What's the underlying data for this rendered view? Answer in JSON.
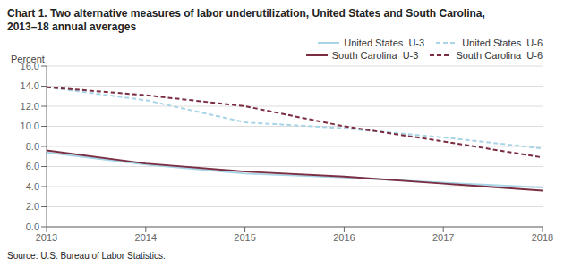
{
  "chart_data": {
    "type": "line",
    "title": "Chart 1. Two alternative measures of labor underutilization, United States and South Carolina,",
    "subtitle": "2013–18 annual averages",
    "y_label": "Percent",
    "annotations": [
      "Source: U.S. Bureau of Labor Statistics."
    ],
    "x": [
      2013,
      2014,
      2015,
      2016,
      2017,
      2018
    ],
    "series": [
      {
        "name": "United States  U-3",
        "color": "#a8d4e8",
        "line_style": "solid",
        "values": [
          7.4,
          6.2,
          5.3,
          4.9,
          4.4,
          3.9
        ]
      },
      {
        "name": "United States  U-6",
        "color": "#a8d4e8",
        "line_style": "dashed",
        "values": [
          13.9,
          12.6,
          10.4,
          9.8,
          8.9,
          7.8
        ]
      },
      {
        "name": "South Carolina  U-3",
        "color": "#7B2D42",
        "line_style": "solid",
        "values": [
          7.6,
          6.3,
          5.5,
          5.0,
          4.3,
          3.6
        ]
      },
      {
        "name": "South Carolina  U-6",
        "color": "#7B2D42",
        "line_style": "dashed",
        "values": [
          13.9,
          13.1,
          12.0,
          10.0,
          8.5,
          6.9
        ]
      }
    ],
    "xlim": [
      2013,
      2018
    ],
    "xticks": [
      2013,
      2014,
      2015,
      2016,
      2017,
      2018
    ],
    "ylim": [
      0,
      16
    ],
    "yticks": [
      {
        "value": 0,
        "label": "0.0"
      },
      {
        "value": 2,
        "label": "2.0"
      },
      {
        "value": 4,
        "label": "4.0"
      },
      {
        "value": 6,
        "label": "6.0"
      },
      {
        "value": 8,
        "label": "8.0"
      },
      {
        "value": 10,
        "label": "10.0"
      },
      {
        "value": 12,
        "label": "12.0"
      },
      {
        "value": 14,
        "label": "14.0"
      },
      {
        "value": 16,
        "label": "16.0"
      }
    ],
    "grid": true,
    "legend": "upper right"
  }
}
